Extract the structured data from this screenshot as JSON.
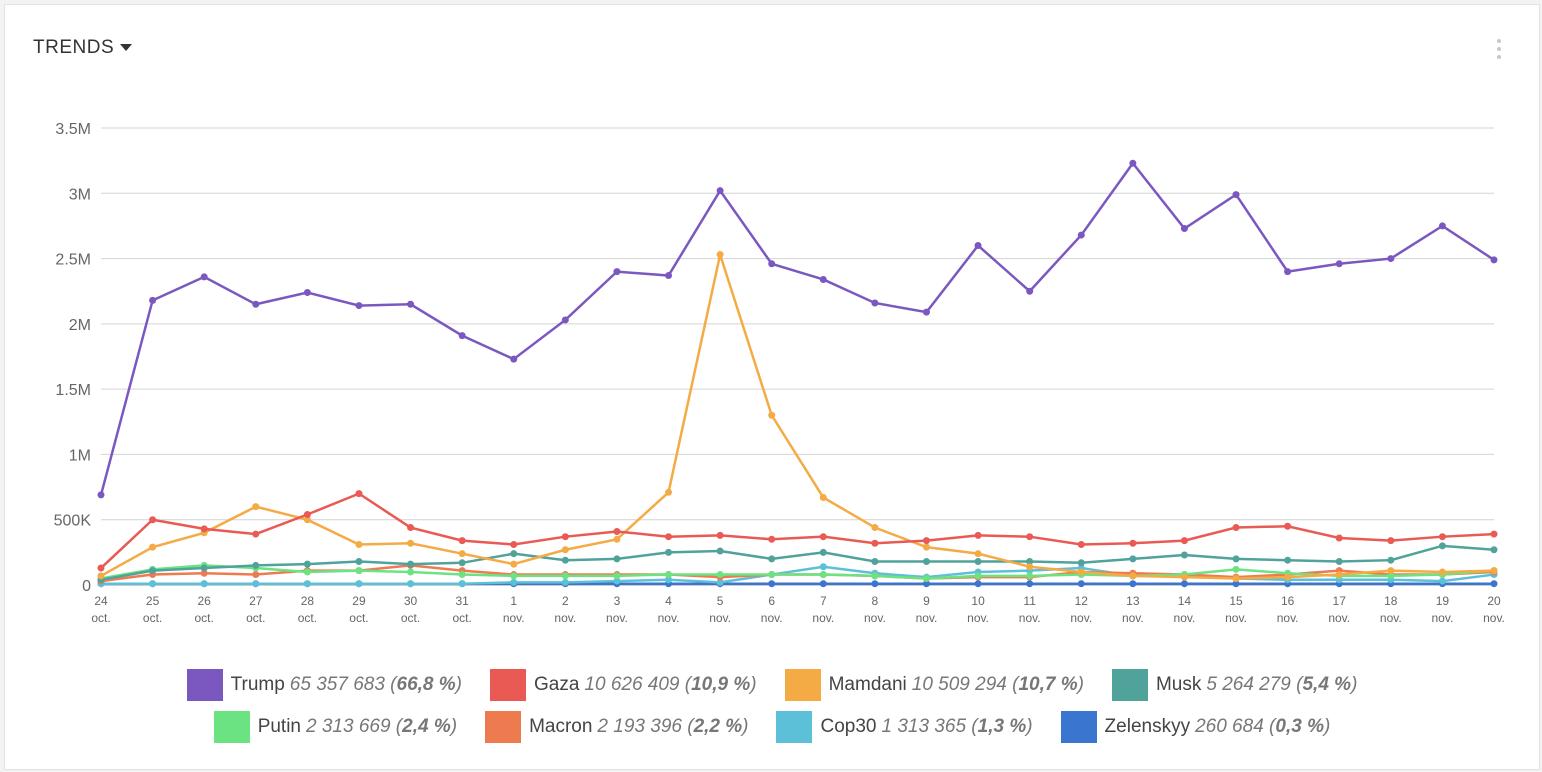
{
  "header": {
    "title": "TRENDS"
  },
  "chart_data": {
    "type": "line",
    "title": "",
    "ylim": [
      0,
      3500000
    ],
    "yticks": [
      {
        "v": 0,
        "label": "0"
      },
      {
        "v": 500000,
        "label": "500K"
      },
      {
        "v": 1000000,
        "label": "1M"
      },
      {
        "v": 1500000,
        "label": "1.5M"
      },
      {
        "v": 2000000,
        "label": "2M"
      },
      {
        "v": 2500000,
        "label": "2.5M"
      },
      {
        "v": 3000000,
        "label": "3M"
      },
      {
        "v": 3500000,
        "label": "3.5M"
      }
    ],
    "grid": true,
    "legend_position": "bottom",
    "categories": [
      [
        "24",
        "oct."
      ],
      [
        "25",
        "oct."
      ],
      [
        "26",
        "oct."
      ],
      [
        "27",
        "oct."
      ],
      [
        "28",
        "oct."
      ],
      [
        "29",
        "oct."
      ],
      [
        "30",
        "oct."
      ],
      [
        "31",
        "oct."
      ],
      [
        "1",
        "nov."
      ],
      [
        "2",
        "nov."
      ],
      [
        "3",
        "nov."
      ],
      [
        "4",
        "nov."
      ],
      [
        "5",
        "nov."
      ],
      [
        "6",
        "nov."
      ],
      [
        "7",
        "nov."
      ],
      [
        "8",
        "nov."
      ],
      [
        "9",
        "nov."
      ],
      [
        "10",
        "nov."
      ],
      [
        "11",
        "nov."
      ],
      [
        "12",
        "nov."
      ],
      [
        "13",
        "nov."
      ],
      [
        "14",
        "nov."
      ],
      [
        "15",
        "nov."
      ],
      [
        "16",
        "nov."
      ],
      [
        "17",
        "nov."
      ],
      [
        "18",
        "nov."
      ],
      [
        "19",
        "nov."
      ],
      [
        "20",
        "nov."
      ]
    ],
    "series": [
      {
        "name": "Zelenskyy",
        "total": "260 684",
        "pct": "0,3 %",
        "color": "#3a75d0",
        "values": [
          0.01,
          0.01,
          0.01,
          0.01,
          0.01,
          0.01,
          0.01,
          0.01,
          0.01,
          0.01,
          0.01,
          0.01,
          0.01,
          0.01,
          0.01,
          0.01,
          0.01,
          0.01,
          0.01,
          0.01,
          0.01,
          0.01,
          0.01,
          0.01,
          0.01,
          0.01,
          0.01,
          0.01
        ]
      },
      {
        "name": "Cop30",
        "total": "1 313 365",
        "pct": "1,3 %",
        "color": "#5bc0d8",
        "values": [
          0.01,
          0.01,
          0.01,
          0.01,
          0.01,
          0.01,
          0.01,
          0.01,
          0.02,
          0.02,
          0.03,
          0.04,
          0.02,
          0.08,
          0.14,
          0.09,
          0.06,
          0.1,
          0.11,
          0.13,
          0.07,
          0.07,
          0.05,
          0.04,
          0.04,
          0.04,
          0.03,
          0.08
        ]
      },
      {
        "name": "Macron",
        "total": "2 193 396",
        "pct": "2,2 %",
        "color": "#ee7b50",
        "values": [
          0.03,
          0.08,
          0.09,
          0.08,
          0.11,
          0.11,
          0.15,
          0.11,
          0.08,
          0.08,
          0.08,
          0.08,
          0.06,
          0.08,
          0.08,
          0.07,
          0.05,
          0.06,
          0.06,
          0.1,
          0.09,
          0.08,
          0.06,
          0.08,
          0.11,
          0.08,
          0.08,
          0.1
        ]
      },
      {
        "name": "Putin",
        "total": "2 313 669",
        "pct": "2,4 %",
        "color": "#6ce383",
        "values": [
          0.05,
          0.12,
          0.15,
          0.13,
          0.1,
          0.11,
          0.1,
          0.08,
          0.07,
          0.07,
          0.07,
          0.08,
          0.08,
          0.08,
          0.08,
          0.07,
          0.05,
          0.07,
          0.07,
          0.08,
          0.07,
          0.08,
          0.12,
          0.09,
          0.07,
          0.07,
          0.08,
          0.11
        ]
      },
      {
        "name": "Musk",
        "total": "5 264 279",
        "pct": "5,4 %",
        "color": "#4fa39a",
        "values": [
          0.04,
          0.11,
          0.13,
          0.15,
          0.16,
          0.18,
          0.16,
          0.17,
          0.24,
          0.19,
          0.2,
          0.25,
          0.26,
          0.2,
          0.25,
          0.18,
          0.18,
          0.18,
          0.18,
          0.17,
          0.2,
          0.23,
          0.2,
          0.19,
          0.18,
          0.19,
          0.3,
          0.27
        ]
      },
      {
        "name": "Mamdani",
        "total": "10 509 294",
        "pct": "10,7 %",
        "color": "#f4ab45",
        "values": [
          0.07,
          0.29,
          0.4,
          0.6,
          0.5,
          0.31,
          0.32,
          0.24,
          0.16,
          0.27,
          0.35,
          0.71,
          2.53,
          1.3,
          0.67,
          0.44,
          0.29,
          0.24,
          0.14,
          0.1,
          0.07,
          0.06,
          0.05,
          0.06,
          0.08,
          0.11,
          0.1,
          0.11
        ]
      },
      {
        "name": "Gaza",
        "total": "10 626 409",
        "pct": "10,9 %",
        "color": "#ea5a55",
        "values": [
          0.13,
          0.5,
          0.43,
          0.39,
          0.54,
          0.7,
          0.44,
          0.34,
          0.31,
          0.37,
          0.41,
          0.37,
          0.38,
          0.35,
          0.37,
          0.32,
          0.34,
          0.38,
          0.37,
          0.31,
          0.32,
          0.34,
          0.44,
          0.45,
          0.36,
          0.34,
          0.37,
          0.39
        ]
      },
      {
        "name": "Trump",
        "total": "65 357 683",
        "pct": "66,8 %",
        "color": "#7b58c0",
        "values": [
          0.69,
          2.18,
          2.36,
          2.15,
          2.24,
          2.14,
          2.15,
          1.91,
          1.73,
          2.03,
          2.4,
          2.37,
          3.02,
          2.46,
          2.34,
          2.16,
          2.09,
          2.6,
          2.25,
          2.68,
          3.23,
          2.73,
          2.99,
          2.4,
          2.46,
          2.5,
          2.75,
          2.49
        ]
      }
    ],
    "value_unit": "millions"
  },
  "legend": {
    "order": [
      [
        "Trump",
        "Gaza",
        "Mamdani",
        "Musk"
      ],
      [
        "Putin",
        "Macron",
        "Cop30",
        "Zelenskyy"
      ]
    ]
  }
}
